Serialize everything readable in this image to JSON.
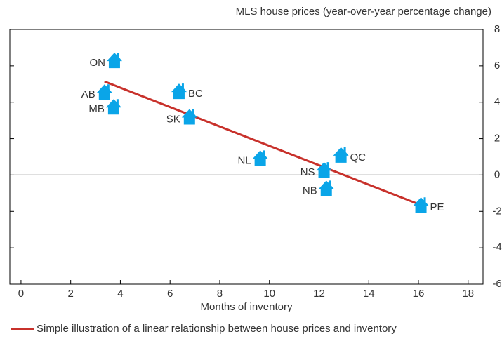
{
  "chart_data": {
    "type": "scatter",
    "y_axis_title": "MLS house prices (year-over-year percentage change)",
    "x_axis_title": "Months of inventory",
    "labels": [
      "ON",
      "AB",
      "MB",
      "BC",
      "SK",
      "NL",
      "NS",
      "NB",
      "QC",
      "PE"
    ],
    "x": [
      3.76,
      3.36,
      3.73,
      6.36,
      6.78,
      9.63,
      12.2,
      12.29,
      12.88,
      16.1
    ],
    "values": [
      6.3,
      4.56,
      3.75,
      4.6,
      3.2,
      0.93,
      0.28,
      -0.73,
      1.1,
      -1.65
    ],
    "color": "#0aa5e8",
    "trend_line": {
      "name": "Simple illustration of a linear relationship between house prices and inventory",
      "color": "#c8312b",
      "x": [
        3.36,
        16.1
      ],
      "values": [
        5.14,
        -1.65
      ]
    },
    "xlim": [
      -0.45,
      18.6
    ],
    "xticks": [
      0,
      2,
      4,
      6,
      8,
      10,
      12,
      14,
      16,
      18
    ],
    "ylim": [
      -6,
      8
    ],
    "yticks": [
      -6,
      -4,
      -2,
      0,
      2,
      4,
      6,
      8
    ],
    "y_axis_side": "right",
    "zero_line": true
  }
}
